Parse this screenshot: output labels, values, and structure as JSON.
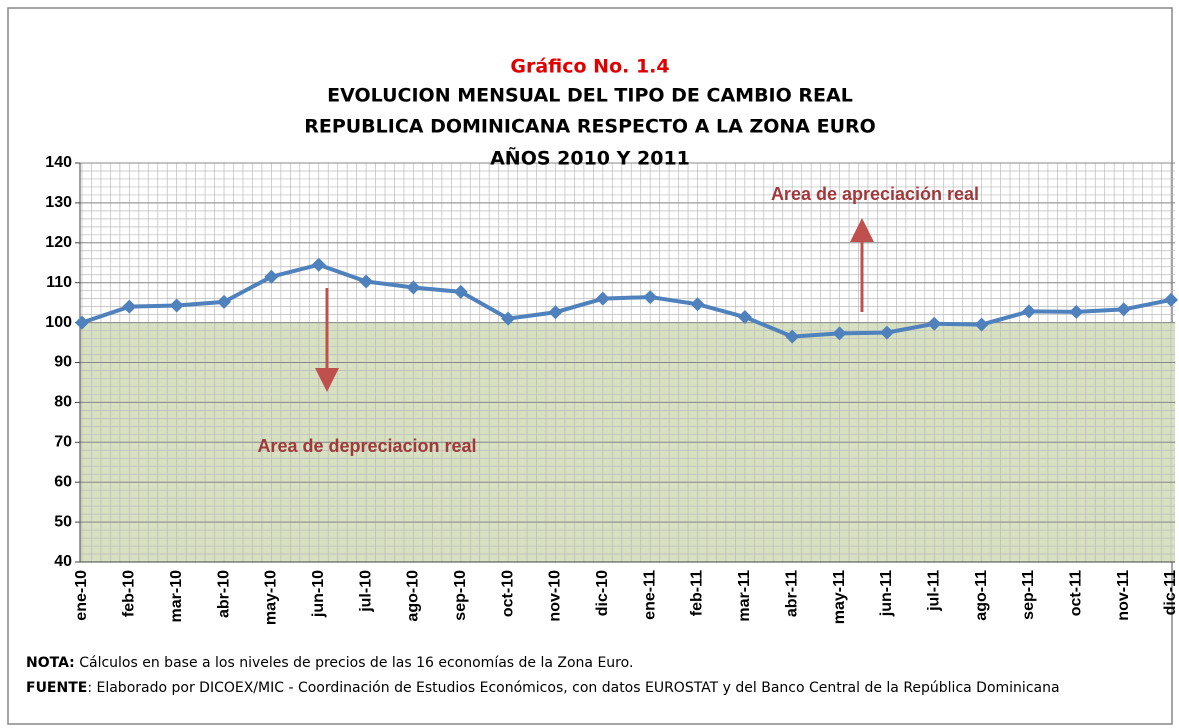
{
  "chart_data": {
    "type": "line",
    "title": "Gráfico No. 1.4",
    "subtitle": [
      "EVOLUCION MENSUAL DEL TIPO DE CAMBIO REAL",
      "REPUBLICA DOMINICANA RESPECTO A LA ZONA EURO",
      "AÑOS 2010 Y 2011"
    ],
    "categories": [
      "ene-10",
      "feb-10",
      "mar-10",
      "abr-10",
      "may-10",
      "jun-10",
      "jul-10",
      "ago-10",
      "sep-10",
      "oct-10",
      "nov-10",
      "dic-10",
      "ene-11",
      "feb-11",
      "mar-11",
      "abr-11",
      "may-11",
      "jun-11",
      "jul-11",
      "ago-11",
      "sep-11",
      "oct-11",
      "nov-11",
      "dic-11"
    ],
    "series": [
      {
        "name": "Tipo de cambio real",
        "color": "#4f81bd",
        "values": [
          100,
          104,
          104.3,
          105.2,
          111.5,
          114.5,
          110.3,
          108.8,
          107.7,
          101,
          102.6,
          106,
          106.4,
          104.6,
          101.4,
          96.5,
          97.3,
          97.5,
          99.7,
          99.5,
          102.8,
          102.7,
          103.3,
          105.7
        ]
      }
    ],
    "ylim": [
      40,
      140
    ],
    "yticks": [
      40,
      50,
      60,
      70,
      80,
      90,
      100,
      110,
      120,
      130,
      140
    ],
    "grid": true,
    "minor_step": 2,
    "shaded_below": 100,
    "shade_color": "#d7e0c0",
    "annotations": [
      "Area de apreciación real",
      "Area de depreciacion real"
    ],
    "notes": [
      {
        "label": "NOTA:",
        "text": " Cálculos en base a los niveles de precios de las 16 economías de la Zona Euro."
      },
      {
        "label": "FUENTE",
        "text": ": Elaborado por DICOEX/MIC - Coordinación de Estudios Económicos, con datos EUROSTAT y del Banco Central de la República Dominicana"
      }
    ]
  }
}
